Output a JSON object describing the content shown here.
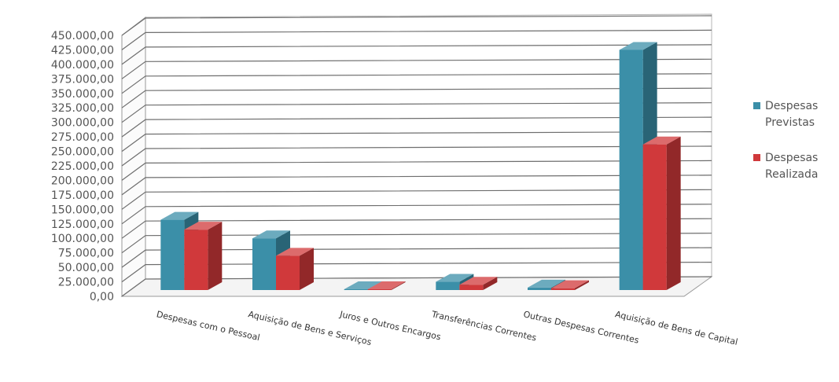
{
  "chart_data": {
    "type": "bar",
    "categories": [
      "Despesas com o Pessoal",
      "Aquisição de Bens e Serviços",
      "Juros e Outros Encargos",
      "Transferências Correntes",
      "Outras Despesas Correntes",
      "Aquisição de Bens de Capital"
    ],
    "series": [
      {
        "name": "Despesas Previstas",
        "name_lines": [
          "Despesas",
          "Previstas"
        ],
        "values": [
          132000,
          100000,
          3000,
          25000,
          15000,
          425000
        ]
      },
      {
        "name": "Despesas Realizada",
        "name_lines": [
          "Despesas",
          "Realizada"
        ],
        "values": [
          115000,
          70000,
          2500,
          20000,
          14000,
          262000
        ]
      }
    ],
    "y_ticks": [
      "0,00",
      "25.000,00",
      "50.000,00",
      "75.000,00",
      "100.000,00",
      "125.000,00",
      "150.000,00",
      "175.000,00",
      "200.000,00",
      "225.000,00",
      "250.000,00",
      "275.000,00",
      "300.000,00",
      "325.000,00",
      "350.000,00",
      "375.000,00",
      "400.000,00",
      "425.000,00",
      "450.000,00"
    ],
    "ylim": [
      0,
      450000
    ],
    "grid": true,
    "legend": "right",
    "colors": {
      "previstas": "#3b8fa8",
      "realizada": "#d0393b"
    }
  }
}
